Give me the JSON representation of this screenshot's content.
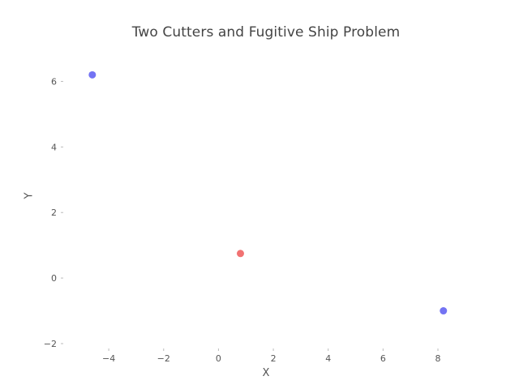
{
  "chart_data": {
    "type": "scatter",
    "title": "Two Cutters and Fugitive Ship Problem",
    "xlabel": "X",
    "ylabel": "Y",
    "xlim": [
      -5.6,
      9.3
    ],
    "ylim": [
      -2.05,
      7.0
    ],
    "xticks": [
      -4,
      -2,
      0,
      2,
      4,
      6,
      8
    ],
    "yticks": [
      -2,
      0,
      2,
      4,
      6
    ],
    "xtick_labels": [
      "−4",
      "−2",
      "0",
      "2",
      "4",
      "6",
      "8"
    ],
    "ytick_labels": [
      "−2",
      "0",
      "2",
      "4",
      "6"
    ],
    "grid": false,
    "legend": "none",
    "series": [
      {
        "color": "#6b6bf2",
        "points": [
          {
            "x": -4.6,
            "y": 6.2
          },
          {
            "x": 8.2,
            "y": -1.0
          }
        ]
      },
      {
        "color": "#f06a6a",
        "points": [
          {
            "x": 0.8,
            "y": 0.75
          }
        ]
      }
    ]
  }
}
